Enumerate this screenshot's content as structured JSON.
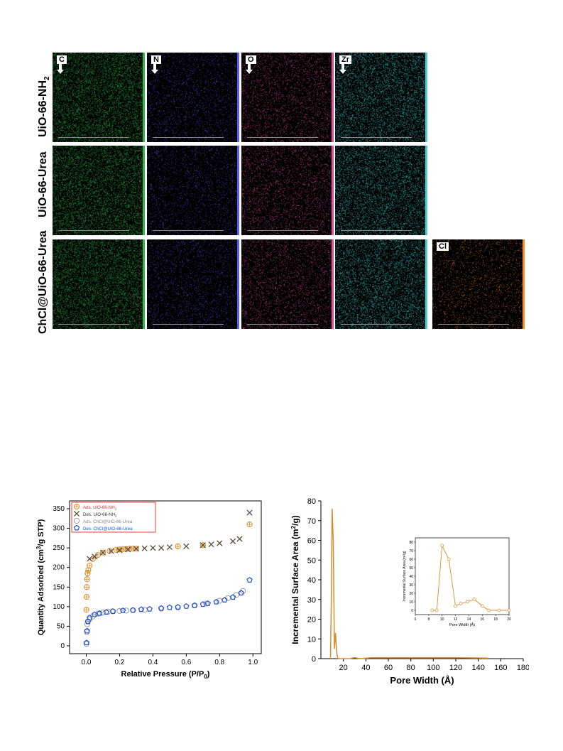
{
  "eds_figure": {
    "rows": [
      {
        "label_main": "UiO-66-NH",
        "label_sub": "2"
      },
      {
        "label_main": "UiO-66-Urea",
        "label_sub": ""
      },
      {
        "label_main": "ChCl@UiO-66-Urea",
        "label_sub": ""
      }
    ],
    "elements": [
      "C",
      "N",
      "O",
      "Zr",
      "Cl"
    ],
    "element_colors": {
      "C": "#2fb84a",
      "N": "#5a5aff",
      "O": "#e0509a",
      "Zr": "#3fd0d0",
      "Cl": "#ff8a1e"
    }
  },
  "chart_data": [
    {
      "type": "scatter",
      "xlabel_main": "Relative Pressure (P/P",
      "xlabel_sub": "0",
      "xlabel_end": ")",
      "ylabel_main": "Quantity Adsorbed (cm",
      "ylabel_sup": "3",
      "ylabel_end": "/g STP)",
      "xlim": [
        -0.1,
        1.05
      ],
      "ylim": [
        -20,
        370
      ],
      "xticks": [
        "0.0",
        "0.2",
        "0.4",
        "0.6",
        "0.8",
        "1.0"
      ],
      "yticks": [
        "0",
        "50",
        "100",
        "150",
        "200",
        "250",
        "300",
        "350"
      ],
      "legend": [
        "Ads. UiO-66-NH",
        "Des. UiO-66-NH",
        "Ads. ChCl@UiO-66-Urea",
        "Des. ChCl@UiO-66-Urea"
      ],
      "legend_subs": [
        "2",
        "2",
        "",
        ""
      ],
      "series": [
        {
          "name": "Ads. UiO-66-NH2",
          "color": "#d98c2e",
          "marker": "circle-plus",
          "points": [
            [
              0.001,
              92
            ],
            [
              0.002,
              125
            ],
            [
              0.003,
              150
            ],
            [
              0.005,
              170
            ],
            [
              0.008,
              185
            ],
            [
              0.012,
              193
            ],
            [
              0.02,
              205
            ],
            [
              0.04,
              222
            ],
            [
              0.07,
              232
            ],
            [
              0.1,
              238
            ],
            [
              0.14,
              242
            ],
            [
              0.18,
              245
            ],
            [
              0.2,
              246
            ],
            [
              0.22,
              247
            ],
            [
              0.24,
              247
            ],
            [
              0.26,
              248
            ],
            [
              0.28,
              248
            ],
            [
              0.3,
              248
            ],
            [
              0.55,
              254
            ],
            [
              0.7,
              257
            ],
            [
              0.98,
              310
            ]
          ]
        },
        {
          "name": "Des. UiO-66-NH2",
          "color": "#5a4a3a",
          "marker": "x",
          "points": [
            [
              0.98,
              340
            ],
            [
              0.92,
              273
            ],
            [
              0.88,
              267
            ],
            [
              0.8,
              262
            ],
            [
              0.75,
              259
            ],
            [
              0.7,
              257
            ],
            [
              0.6,
              254
            ],
            [
              0.5,
              252
            ],
            [
              0.45,
              250
            ],
            [
              0.4,
              250
            ],
            [
              0.35,
              249
            ],
            [
              0.3,
              248
            ],
            [
              0.25,
              246
            ],
            [
              0.2,
              244
            ],
            [
              0.15,
              242
            ],
            [
              0.1,
              238
            ],
            [
              0.05,
              228
            ],
            [
              0.02,
              222
            ]
          ]
        },
        {
          "name": "Ads. ChCl@UiO-66-Urea",
          "color": "#9a9a9a",
          "marker": "circle-open",
          "points": [
            [
              0.001,
              5
            ],
            [
              0.003,
              35
            ],
            [
              0.006,
              55
            ],
            [
              0.01,
              62
            ],
            [
              0.02,
              68
            ],
            [
              0.04,
              75
            ],
            [
              0.07,
              82
            ],
            [
              0.1,
              85
            ],
            [
              0.13,
              87
            ],
            [
              0.16,
              88
            ],
            [
              0.2,
              89
            ],
            [
              0.24,
              90
            ],
            [
              0.28,
              91
            ],
            [
              0.35,
              92
            ],
            [
              0.45,
              95
            ],
            [
              0.55,
              98
            ],
            [
              0.65,
              103
            ],
            [
              0.72,
              108
            ],
            [
              0.8,
              115
            ],
            [
              0.85,
              122
            ],
            [
              0.9,
              130
            ],
            [
              0.94,
              140
            ]
          ]
        },
        {
          "name": "Des. ChCl@UiO-66-Urea",
          "color": "#1f4ed8",
          "marker": "pentagon",
          "points": [
            [
              0.98,
              168
            ],
            [
              0.93,
              135
            ],
            [
              0.88,
              124
            ],
            [
              0.83,
              117
            ],
            [
              0.78,
              112
            ],
            [
              0.73,
              108
            ],
            [
              0.7,
              106
            ],
            [
              0.65,
              103
            ],
            [
              0.6,
              101
            ],
            [
              0.55,
              99
            ],
            [
              0.5,
              98
            ],
            [
              0.45,
              96
            ],
            [
              0.38,
              94
            ],
            [
              0.33,
              93
            ],
            [
              0.28,
              91
            ],
            [
              0.22,
              90
            ],
            [
              0.16,
              88
            ],
            [
              0.12,
              86
            ],
            [
              0.08,
              83
            ],
            [
              0.05,
              80
            ],
            [
              0.02,
              72
            ],
            [
              0.01,
              62
            ],
            [
              0.005,
              38
            ],
            [
              0.002,
              8
            ]
          ]
        }
      ]
    },
    {
      "type": "line",
      "xlabel": "Pore Width (Å)",
      "ylabel_main": "Incremental Surface Area (m",
      "ylabel_sup": "2",
      "ylabel_end": "/g)",
      "xlim": [
        0,
        180
      ],
      "ylim": [
        0,
        80
      ],
      "xticks": [
        "20",
        "40",
        "60",
        "80",
        "100",
        "120",
        "140",
        "160",
        "180"
      ],
      "yticks": [
        "0",
        "10",
        "20",
        "30",
        "40",
        "50",
        "60",
        "70",
        "80"
      ],
      "color": "#d98c2e",
      "series": [
        {
          "name": "main",
          "points": [
            [
              8.5,
              0
            ],
            [
              9.5,
              40
            ],
            [
              10,
              76
            ],
            [
              11,
              60
            ],
            [
              12,
              5
            ],
            [
              13,
              13
            ],
            [
              14,
              3
            ],
            [
              15,
              0.3
            ],
            [
              16,
              0
            ],
            [
              20,
              0
            ],
            [
              25,
              0
            ],
            [
              30,
              0.5
            ],
            [
              35,
              0
            ],
            [
              40,
              0.2
            ],
            [
              45,
              0.5
            ],
            [
              60,
              0.5
            ],
            [
              80,
              0.5
            ],
            [
              100,
              0.5
            ],
            [
              120,
              0.5
            ],
            [
              148,
              0.3
            ]
          ]
        }
      ],
      "inset": {
        "xlabel": "Pore Width (Å)",
        "ylabel": "Incremental Surface Area (m²/g)",
        "xlim": [
          6,
          20
        ],
        "ylim": [
          -5,
          85
        ],
        "xticks": [
          "6",
          "8",
          "10",
          "12",
          "14",
          "16",
          "18",
          "20"
        ],
        "yticks": [
          "0",
          "10",
          "20",
          "30",
          "40",
          "50",
          "60",
          "70",
          "80"
        ],
        "points": [
          [
            8.5,
            0
          ],
          [
            9.2,
            0
          ],
          [
            10,
            76
          ],
          [
            11,
            60
          ],
          [
            12,
            5
          ],
          [
            12.8,
            8
          ],
          [
            13.8,
            10
          ],
          [
            14.8,
            13
          ],
          [
            16,
            5
          ],
          [
            17,
            0
          ],
          [
            18.5,
            0
          ],
          [
            20,
            0
          ]
        ]
      }
    }
  ]
}
